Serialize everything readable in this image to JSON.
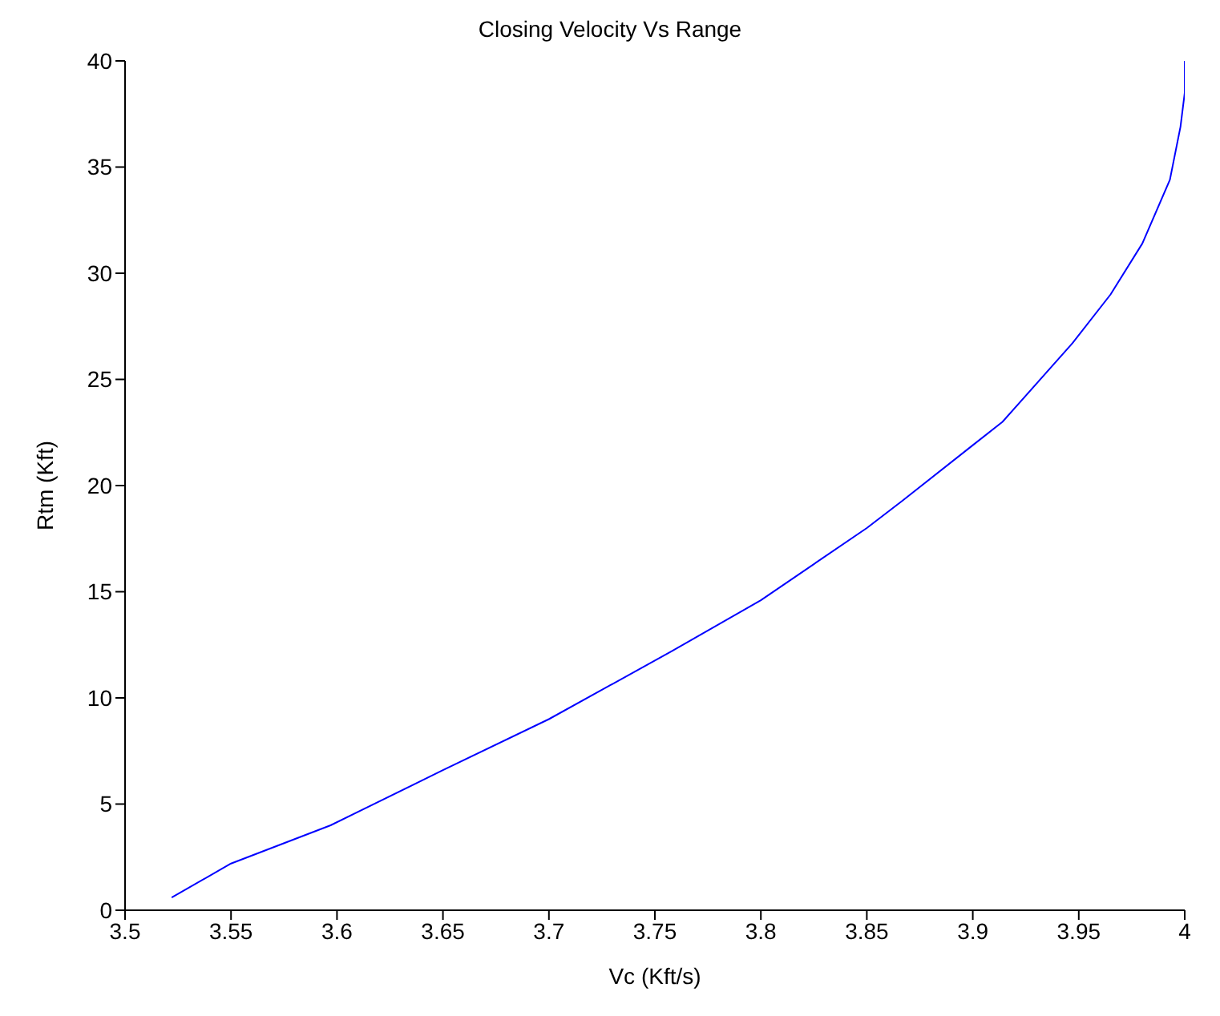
{
  "chart_data": {
    "type": "line",
    "title": "Closing Velocity Vs Range",
    "xlabel": "Vc (Kft/s)",
    "ylabel": "Rtm (Kft)",
    "xlim": [
      3.5,
      4
    ],
    "xticks": [
      3.5,
      3.55,
      3.6,
      3.65,
      3.7,
      3.75,
      3.8,
      3.85,
      3.9,
      3.95,
      4
    ],
    "ylim": [
      0,
      40
    ],
    "yticks": [
      0,
      5,
      10,
      15,
      20,
      25,
      30,
      35,
      40
    ],
    "marker": "none",
    "line_style": "solid",
    "series": [
      {
        "color": "#0000ff",
        "x": [
          3.522,
          3.55,
          3.597,
          3.65,
          3.7,
          3.758,
          3.8,
          3.85,
          3.867,
          3.9,
          3.914,
          3.947,
          3.965,
          3.98,
          3.993,
          3.998,
          4,
          4
        ],
        "values": [
          0.6,
          2.2,
          4.0,
          6.6,
          9.0,
          12.2,
          14.6,
          18.0,
          19.3,
          21.9,
          23.0,
          26.7,
          29.0,
          31.4,
          34.4,
          36.9,
          38.5,
          40
        ]
      }
    ]
  }
}
